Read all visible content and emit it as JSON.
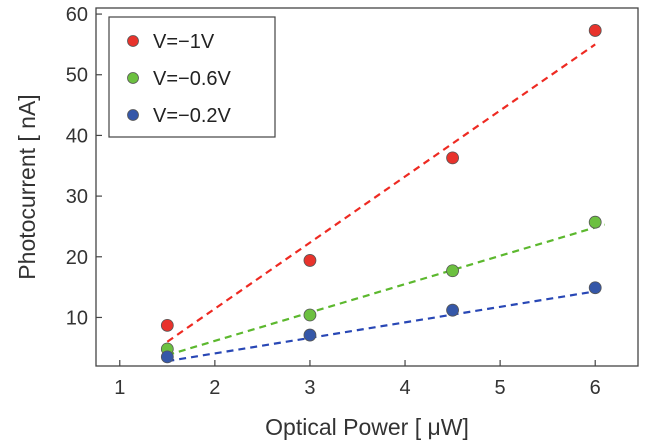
{
  "chart_data": {
    "type": "scatter",
    "title": "",
    "xlabel": "Optical Power [ μW]",
    "ylabel": "Photocurrent [ nA]",
    "xlim": [
      0.75,
      6.45
    ],
    "ylim": [
      2,
      61
    ],
    "xticks": [
      1,
      2,
      3,
      4,
      5,
      6
    ],
    "yticks": [
      10,
      20,
      30,
      40,
      50,
      60
    ],
    "grid": false,
    "legend_position": "top-left",
    "series": [
      {
        "name": "V=−1V",
        "color": "#e8332c",
        "marker": "circle",
        "x": [
          1.5,
          3,
          4.5,
          6
        ],
        "y": [
          8.7,
          19.4,
          36.3,
          57.3
        ],
        "fit": {
          "style": "dashed",
          "color": "#ee2a22",
          "x": [
            1.5,
            6
          ],
          "y": [
            6.0,
            55.0
          ]
        }
      },
      {
        "name": "V=−0.6V",
        "color": "#6cc040",
        "marker": "circle",
        "x": [
          1.5,
          3,
          4.5,
          6
        ],
        "y": [
          4.8,
          10.4,
          17.7,
          25.7
        ],
        "fit": {
          "style": "dashed",
          "color": "#5cb82e",
          "x": [
            1.5,
            6.1
          ],
          "y": [
            3.8,
            25.3
          ]
        }
      },
      {
        "name": "V=−0.2V",
        "color": "#3557a8",
        "marker": "circle",
        "x": [
          1.5,
          3,
          4.5,
          6
        ],
        "y": [
          3.5,
          7.1,
          11.2,
          14.9
        ],
        "fit": {
          "style": "dashed",
          "color": "#2847b5",
          "x": [
            1.5,
            6
          ],
          "y": [
            2.8,
            14.3
          ]
        }
      }
    ]
  }
}
